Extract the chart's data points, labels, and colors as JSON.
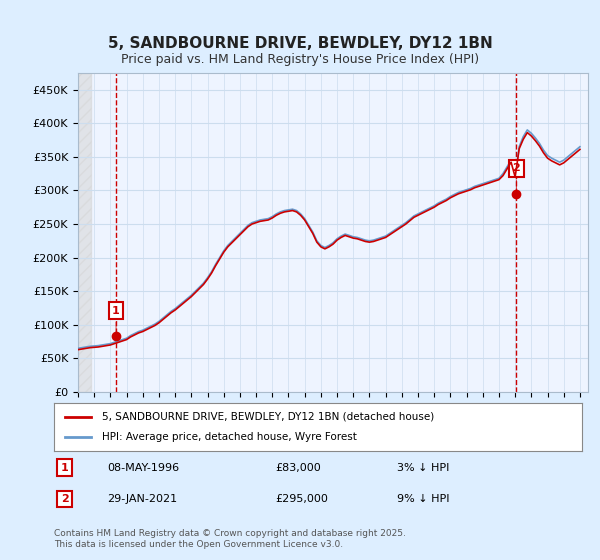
{
  "title": "5, SANDBOURNE DRIVE, BEWDLEY, DY12 1BN",
  "subtitle": "Price paid vs. HM Land Registry's House Price Index (HPI)",
  "legend_line1": "5, SANDBOURNE DRIVE, BEWDLEY, DY12 1BN (detached house)",
  "legend_line2": "HPI: Average price, detached house, Wyre Forest",
  "footnote": "Contains HM Land Registry data © Crown copyright and database right 2025.\nThis data is licensed under the Open Government Licence v3.0.",
  "xlabel": "",
  "ylabel": "",
  "ylim": [
    0,
    475000
  ],
  "yticks": [
    0,
    50000,
    100000,
    150000,
    200000,
    250000,
    300000,
    350000,
    400000,
    450000
  ],
  "ytick_labels": [
    "£0",
    "£50K",
    "£100K",
    "£150K",
    "£200K",
    "£250K",
    "£300K",
    "£350K",
    "£400K",
    "£450K"
  ],
  "xlim_start": 1994.0,
  "xlim_end": 2025.5,
  "xticks": [
    1994,
    1995,
    1996,
    1997,
    1998,
    1999,
    2000,
    2001,
    2002,
    2003,
    2004,
    2005,
    2006,
    2007,
    2008,
    2009,
    2010,
    2011,
    2012,
    2013,
    2014,
    2015,
    2016,
    2017,
    2018,
    2019,
    2020,
    2021,
    2022,
    2023,
    2024,
    2025
  ],
  "hpi_color": "#6699cc",
  "price_color": "#cc0000",
  "marker_color": "#cc0000",
  "vline_color": "#cc0000",
  "grid_color": "#ccddee",
  "background_color": "#ddeeff",
  "plot_bg_color": "#eef4ff",
  "sale1": {
    "date": 1996.35,
    "price": 83000,
    "label": "1"
  },
  "sale2": {
    "date": 2021.08,
    "price": 295000,
    "label": "2"
  },
  "hpi_data_x": [
    1994.0,
    1994.25,
    1994.5,
    1994.75,
    1995.0,
    1995.25,
    1995.5,
    1995.75,
    1996.0,
    1996.25,
    1996.5,
    1996.75,
    1997.0,
    1997.25,
    1997.5,
    1997.75,
    1998.0,
    1998.25,
    1998.5,
    1998.75,
    1999.0,
    1999.25,
    1999.5,
    1999.75,
    2000.0,
    2000.25,
    2000.5,
    2000.75,
    2001.0,
    2001.25,
    2001.5,
    2001.75,
    2002.0,
    2002.25,
    2002.5,
    2002.75,
    2003.0,
    2003.25,
    2003.5,
    2003.75,
    2004.0,
    2004.25,
    2004.5,
    2004.75,
    2005.0,
    2005.25,
    2005.5,
    2005.75,
    2006.0,
    2006.25,
    2006.5,
    2006.75,
    2007.0,
    2007.25,
    2007.5,
    2007.75,
    2008.0,
    2008.25,
    2008.5,
    2008.75,
    2009.0,
    2009.25,
    2009.5,
    2009.75,
    2010.0,
    2010.25,
    2010.5,
    2010.75,
    2011.0,
    2011.25,
    2011.5,
    2011.75,
    2012.0,
    2012.25,
    2012.5,
    2012.75,
    2013.0,
    2013.25,
    2013.5,
    2013.75,
    2014.0,
    2014.25,
    2014.5,
    2014.75,
    2015.0,
    2015.25,
    2015.5,
    2015.75,
    2016.0,
    2016.25,
    2016.5,
    2016.75,
    2017.0,
    2017.25,
    2017.5,
    2017.75,
    2018.0,
    2018.25,
    2018.5,
    2018.75,
    2019.0,
    2019.25,
    2019.5,
    2019.75,
    2020.0,
    2020.25,
    2020.5,
    2020.75,
    2021.0,
    2021.25,
    2021.5,
    2021.75,
    2022.0,
    2022.25,
    2022.5,
    2022.75,
    2023.0,
    2023.25,
    2023.5,
    2023.75,
    2024.0,
    2024.25,
    2024.5,
    2024.75,
    2025.0
  ],
  "hpi_data_y": [
    65000,
    66000,
    67000,
    68000,
    68500,
    69000,
    70000,
    71000,
    72000,
    74000,
    76000,
    78000,
    80000,
    84000,
    87000,
    90000,
    92000,
    95000,
    98000,
    101000,
    105000,
    110000,
    115000,
    120000,
    124000,
    129000,
    134000,
    139000,
    144000,
    150000,
    156000,
    162000,
    170000,
    179000,
    190000,
    200000,
    210000,
    218000,
    224000,
    230000,
    236000,
    242000,
    248000,
    252000,
    254000,
    256000,
    257000,
    258000,
    261000,
    265000,
    268000,
    270000,
    271000,
    272000,
    270000,
    265000,
    258000,
    248000,
    238000,
    225000,
    218000,
    215000,
    218000,
    222000,
    228000,
    232000,
    235000,
    233000,
    231000,
    230000,
    228000,
    226000,
    225000,
    226000,
    228000,
    230000,
    232000,
    236000,
    240000,
    244000,
    248000,
    252000,
    257000,
    262000,
    265000,
    268000,
    271000,
    274000,
    277000,
    281000,
    284000,
    287000,
    291000,
    294000,
    297000,
    299000,
    301000,
    303000,
    306000,
    308000,
    310000,
    312000,
    314000,
    316000,
    318000,
    325000,
    335000,
    345000,
    322000,
    365000,
    380000,
    390000,
    385000,
    378000,
    370000,
    360000,
    352000,
    348000,
    345000,
    342000,
    345000,
    350000,
    355000,
    360000,
    365000
  ],
  "price_data_x": [
    1994.0,
    1994.25,
    1994.5,
    1994.75,
    1995.0,
    1995.25,
    1995.5,
    1995.75,
    1996.0,
    1996.25,
    1996.5,
    1996.75,
    1997.0,
    1997.25,
    1997.5,
    1997.75,
    1998.0,
    1998.25,
    1998.5,
    1998.75,
    1999.0,
    1999.25,
    1999.5,
    1999.75,
    2000.0,
    2000.25,
    2000.5,
    2000.75,
    2001.0,
    2001.25,
    2001.5,
    2001.75,
    2002.0,
    2002.25,
    2002.5,
    2002.75,
    2003.0,
    2003.25,
    2003.5,
    2003.75,
    2004.0,
    2004.25,
    2004.5,
    2004.75,
    2005.0,
    2005.25,
    2005.5,
    2005.75,
    2006.0,
    2006.25,
    2006.5,
    2006.75,
    2007.0,
    2007.25,
    2007.5,
    2007.75,
    2008.0,
    2008.25,
    2008.5,
    2008.75,
    2009.0,
    2009.25,
    2009.5,
    2009.75,
    2010.0,
    2010.25,
    2010.5,
    2010.75,
    2011.0,
    2011.25,
    2011.5,
    2011.75,
    2012.0,
    2012.25,
    2012.5,
    2012.75,
    2013.0,
    2013.25,
    2013.5,
    2013.75,
    2014.0,
    2014.25,
    2014.5,
    2014.75,
    2015.0,
    2015.25,
    2015.5,
    2015.75,
    2016.0,
    2016.25,
    2016.5,
    2016.75,
    2017.0,
    2017.25,
    2017.5,
    2017.75,
    2018.0,
    2018.25,
    2018.5,
    2018.75,
    2019.0,
    2019.25,
    2019.5,
    2019.75,
    2020.0,
    2020.25,
    2020.5,
    2020.75,
    2021.0,
    2021.25,
    2021.5,
    2021.75,
    2022.0,
    2022.25,
    2022.5,
    2022.75,
    2023.0,
    2023.25,
    2023.5,
    2023.75,
    2024.0,
    2024.25,
    2024.5,
    2024.75,
    2025.0
  ],
  "price_data_y": [
    63000,
    64000,
    65000,
    66000,
    66500,
    67000,
    68000,
    69000,
    70000,
    72000,
    74000,
    76000,
    78000,
    82000,
    85000,
    88000,
    90000,
    93000,
    96000,
    99000,
    103000,
    108000,
    113000,
    118000,
    122000,
    127000,
    132000,
    137000,
    142000,
    148000,
    154000,
    160000,
    168000,
    177000,
    188000,
    198000,
    208000,
    216000,
    222000,
    228000,
    234000,
    240000,
    246000,
    250000,
    252000,
    254000,
    255000,
    256000,
    259000,
    263000,
    266000,
    268000,
    269000,
    270000,
    268000,
    263000,
    256000,
    246000,
    236000,
    223000,
    216000,
    213000,
    216000,
    220000,
    226000,
    230000,
    233000,
    231000,
    229000,
    228000,
    226000,
    224000,
    223000,
    224000,
    226000,
    228000,
    230000,
    234000,
    238000,
    242000,
    246000,
    250000,
    255000,
    260000,
    263000,
    266000,
    269000,
    272000,
    275000,
    279000,
    282000,
    285000,
    289000,
    292000,
    295000,
    297000,
    299000,
    301000,
    304000,
    306000,
    308000,
    310000,
    312000,
    314000,
    316000,
    322000,
    332000,
    342000,
    320000,
    362000,
    376000,
    386000,
    381000,
    374000,
    366000,
    356000,
    348000,
    344000,
    341000,
    338000,
    341000,
    346000,
    351000,
    356000,
    361000
  ]
}
